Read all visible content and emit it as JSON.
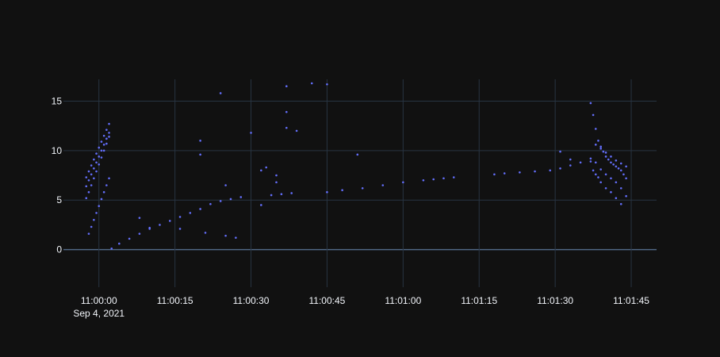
{
  "chart_data": {
    "type": "scatter",
    "title": "",
    "xlabel": "",
    "ylabel": "",
    "x_range": [
      "2021-09-04 10:59:53",
      "2021-09-04 11:01:50"
    ],
    "ylim": [
      -3.8,
      17.2
    ],
    "x_ticks": [
      {
        "t": "2021-09-04 11:00:00",
        "label": "11:00:00",
        "sublabel": "Sep 4, 2021"
      },
      {
        "t": "2021-09-04 11:00:15",
        "label": "11:00:15",
        "sublabel": ""
      },
      {
        "t": "2021-09-04 11:00:30",
        "label": "11:00:30",
        "sublabel": ""
      },
      {
        "t": "2021-09-04 11:00:45",
        "label": "11:00:45",
        "sublabel": ""
      },
      {
        "t": "2021-09-04 11:01:00",
        "label": "11:01:00",
        "sublabel": ""
      },
      {
        "t": "2021-09-04 11:01:15",
        "label": "11:01:15",
        "sublabel": ""
      },
      {
        "t": "2021-09-04 11:01:30",
        "label": "11:01:30",
        "sublabel": ""
      },
      {
        "t": "2021-09-04 11:01:45",
        "label": "11:01:45",
        "sublabel": ""
      }
    ],
    "y_ticks": [
      0,
      5,
      10,
      15
    ],
    "grid": true,
    "legend": "none",
    "series": [
      {
        "color": "#636efa",
        "x": [
          "2021-09-04 11:00:02.5",
          "2021-09-04 11:00:04",
          "2021-09-04 11:00:06",
          "2021-09-04 11:00:08",
          "2021-09-04 11:00:10",
          "2021-09-04 11:00:12",
          "2021-09-04 11:00:14",
          "2021-09-04 11:00:16",
          "2021-09-04 11:00:18",
          "2021-09-04 11:00:20",
          "2021-09-04 11:00:22",
          "2021-09-04 11:00:24",
          "2021-09-04 11:00:26",
          "2021-09-04 11:00:28",
          "2021-09-04 11:00:34",
          "2021-09-04 11:00:36",
          "2021-09-04 11:00:38",
          "2021-09-04 11:00:45",
          "2021-09-04 11:00:48",
          "2021-09-04 11:00:52",
          "2021-09-04 11:00:56",
          "2021-09-04 11:01:00",
          "2021-09-04 11:01:04",
          "2021-09-04 11:01:06",
          "2021-09-04 11:01:08",
          "2021-09-04 11:01:10",
          "2021-09-04 11:01:18",
          "2021-09-04 11:01:20",
          "2021-09-04 11:01:23",
          "2021-09-04 11:01:26",
          "2021-09-04 11:01:29",
          "2021-09-04 11:01:31",
          "2021-09-04 11:01:33",
          "2021-09-04 11:01:35",
          "2021-09-04 11:01:37",
          "2021-09-04 10:59:57.5",
          "2021-09-04 10:59:58",
          "2021-09-04 10:59:58.5",
          "2021-09-04 10:59:59",
          "2021-09-04 10:59:59.5",
          "2021-09-04 11:00:00",
          "2021-09-04 11:00:00.5",
          "2021-09-04 11:00:01",
          "2021-09-04 11:00:01.5",
          "2021-09-04 11:00:02",
          "2021-09-04 10:59:57.5",
          "2021-09-04 10:59:58",
          "2021-09-04 10:59:58.5",
          "2021-09-04 10:59:59",
          "2021-09-04 10:59:59.5",
          "2021-09-04 11:00:00",
          "2021-09-04 11:00:00.5",
          "2021-09-04 11:00:01",
          "2021-09-04 11:00:01.5",
          "2021-09-04 11:00:02",
          "2021-09-04 10:59:57.5",
          "2021-09-04 10:59:58",
          "2021-09-04 10:59:58.5",
          "2021-09-04 10:59:59",
          "2021-09-04 10:59:59.5",
          "2021-09-04 11:00:00",
          "2021-09-04 11:00:00.5",
          "2021-09-04 11:00:01",
          "2021-09-04 11:00:01.5",
          "2021-09-04 11:00:02",
          "2021-09-04 10:59:58",
          "2021-09-04 10:59:58.5",
          "2021-09-04 10:59:59",
          "2021-09-04 10:59:59.5",
          "2021-09-04 11:00:00",
          "2021-09-04 11:00:00.5",
          "2021-09-04 11:00:01",
          "2021-09-04 11:00:01.5",
          "2021-09-04 11:00:02",
          "2021-09-04 11:01:37",
          "2021-09-04 11:01:37.5",
          "2021-09-04 11:01:38",
          "2021-09-04 11:01:38.5",
          "2021-09-04 11:01:39",
          "2021-09-04 11:01:39.5",
          "2021-09-04 11:01:40",
          "2021-09-04 11:01:40.5",
          "2021-09-04 11:01:41",
          "2021-09-04 11:01:41.5",
          "2021-09-04 11:01:42",
          "2021-09-04 11:01:42.5",
          "2021-09-04 11:01:43",
          "2021-09-04 11:01:43.5",
          "2021-09-04 11:01:44",
          "2021-09-04 11:01:37",
          "2021-09-04 11:01:38",
          "2021-09-04 11:01:39",
          "2021-09-04 11:01:40",
          "2021-09-04 11:01:41",
          "2021-09-04 11:01:42",
          "2021-09-04 11:01:43",
          "2021-09-04 11:01:44",
          "2021-09-04 11:01:38",
          "2021-09-04 11:01:39",
          "2021-09-04 11:01:40",
          "2021-09-04 11:01:41",
          "2021-09-04 11:01:42",
          "2021-09-04 11:01:43",
          "2021-09-04 11:01:44",
          "2021-09-04 11:01:37.5",
          "2021-09-04 11:01:38",
          "2021-09-04 11:01:38.5",
          "2021-09-04 11:01:39",
          "2021-09-04 11:01:40",
          "2021-09-04 11:01:41",
          "2021-09-04 11:01:42",
          "2021-09-04 11:01:43",
          "2021-09-04 11:00:08",
          "2021-09-04 11:00:10",
          "2021-09-04 11:00:16",
          "2021-09-04 11:00:20",
          "2021-09-04 11:00:20",
          "2021-09-04 11:00:21",
          "2021-09-04 11:00:24",
          "2021-09-04 11:00:25",
          "2021-09-04 11:00:25",
          "2021-09-04 11:00:27",
          "2021-09-04 11:00:30",
          "2021-09-04 11:00:32",
          "2021-09-04 11:00:32",
          "2021-09-04 11:00:33",
          "2021-09-04 11:00:35",
          "2021-09-04 11:00:35",
          "2021-09-04 11:00:37",
          "2021-09-04 11:00:37",
          "2021-09-04 11:00:37",
          "2021-09-04 11:00:39",
          "2021-09-04 11:00:42",
          "2021-09-04 11:00:45",
          "2021-09-04 11:00:51",
          "2021-09-04 11:01:31",
          "2021-09-04 11:01:33"
        ],
        "y": [
          0.1,
          0.6,
          1.1,
          1.6,
          2.1,
          2.5,
          2.9,
          3.3,
          3.7,
          4.1,
          4.6,
          4.9,
          5.1,
          5.3,
          5.5,
          5.6,
          5.7,
          5.8,
          6.0,
          6.2,
          6.5,
          6.8,
          7.0,
          7.1,
          7.2,
          7.3,
          7.6,
          7.7,
          7.8,
          7.9,
          8.0,
          8.2,
          8.5,
          8.8,
          8.9,
          5.2,
          5.8,
          6.5,
          7.2,
          7.9,
          8.6,
          9.3,
          10.0,
          10.7,
          11.4,
          6.4,
          7.0,
          7.6,
          8.2,
          8.8,
          9.4,
          10.0,
          10.6,
          11.2,
          11.8,
          7.3,
          7.9,
          8.5,
          9.1,
          9.7,
          10.3,
          10.9,
          11.5,
          12.1,
          12.7,
          1.6,
          2.3,
          3.0,
          3.7,
          4.4,
          5.1,
          5.8,
          6.5,
          7.2,
          14.8,
          13.6,
          12.2,
          11.0,
          10.4,
          9.9,
          9.4,
          9.1,
          8.8,
          8.6,
          8.4,
          8.2,
          8.0,
          7.6,
          7.2,
          9.2,
          8.8,
          8.1,
          7.6,
          7.2,
          6.8,
          6.2,
          5.4,
          10.6,
          10.2,
          9.8,
          9.4,
          9.0,
          8.7,
          8.4,
          8.0,
          7.6,
          7.3,
          6.8,
          6.2,
          5.8,
          5.2,
          4.6,
          3.2,
          2.2,
          2.1,
          11.0,
          9.6,
          1.7,
          15.8,
          6.5,
          1.4,
          1.2,
          11.8,
          4.5,
          8.0,
          8.3,
          6.8,
          7.5,
          16.5,
          13.9,
          12.3,
          12.0,
          16.8,
          16.7,
          9.6,
          9.9,
          9.1
        ]
      }
    ]
  }
}
